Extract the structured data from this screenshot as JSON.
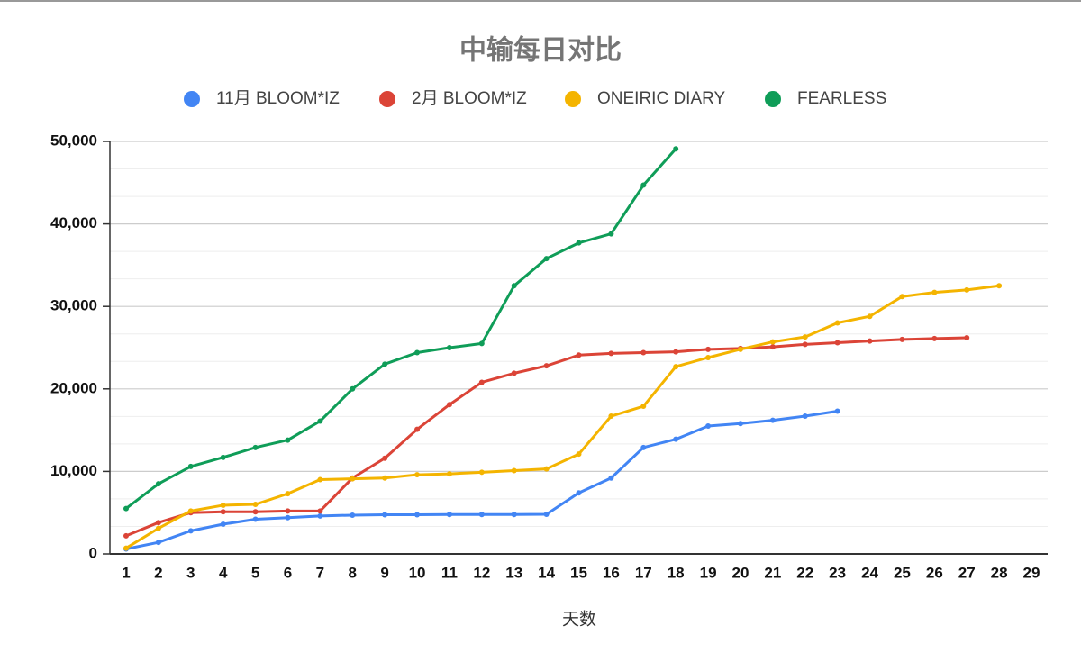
{
  "chart_data": {
    "type": "line",
    "title": "中输每日对比",
    "x_label": "天数",
    "categories": [
      "1",
      "2",
      "3",
      "4",
      "5",
      "6",
      "7",
      "8",
      "9",
      "10",
      "11",
      "12",
      "13",
      "14",
      "15",
      "16",
      "17",
      "18",
      "19",
      "20",
      "21",
      "22",
      "23",
      "24",
      "25",
      "26",
      "27",
      "28",
      "29"
    ],
    "series": [
      {
        "name": "11月 BLOOM*IZ",
        "color": "#4285f4",
        "values": [
          600,
          1400,
          2800,
          3600,
          4200,
          4400,
          4600,
          4700,
          4750,
          4750,
          4780,
          4780,
          4780,
          4800,
          7400,
          9200,
          12900,
          13900,
          15500,
          15800,
          16200,
          16700,
          17300,
          null,
          null,
          null,
          null,
          null,
          null
        ]
      },
      {
        "name": "2月 BLOOM*IZ",
        "color": "#db4437",
        "values": [
          2200,
          3800,
          5000,
          5100,
          5100,
          5200,
          5200,
          9200,
          11600,
          15100,
          18100,
          20800,
          21900,
          22800,
          24100,
          24300,
          24400,
          24500,
          24800,
          24900,
          25100,
          25400,
          25600,
          25800,
          26000,
          26100,
          26200,
          null,
          null
        ]
      },
      {
        "name": "ONEIRIC DIARY",
        "color": "#f4b400",
        "values": [
          700,
          3100,
          5200,
          5900,
          6000,
          7300,
          9000,
          9100,
          9200,
          9600,
          9700,
          9900,
          10100,
          10300,
          12100,
          16700,
          17900,
          22700,
          23800,
          24800,
          25700,
          26300,
          28000,
          28800,
          31200,
          31700,
          32000,
          32500,
          null
        ]
      },
      {
        "name": "FEARLESS",
        "color": "#0f9d58",
        "values": [
          5500,
          8500,
          10600,
          11700,
          12900,
          13800,
          16100,
          20000,
          23000,
          24400,
          25000,
          25500,
          32500,
          35800,
          37700,
          38800,
          44700,
          49100,
          null,
          null,
          null,
          null,
          null,
          null,
          null,
          null,
          null,
          null,
          null
        ]
      }
    ],
    "ylim": [
      0,
      50000
    ],
    "yticks": [
      0,
      {
        "value": 10000,
        "label": "10,000"
      },
      {
        "value": 20000,
        "label": "20,000"
      },
      {
        "value": 30000,
        "label": "30,000"
      },
      {
        "value": 40000,
        "label": "40,000"
      },
      {
        "value": 50000,
        "label": "50,000"
      }
    ],
    "grid": true,
    "legend": "top"
  }
}
